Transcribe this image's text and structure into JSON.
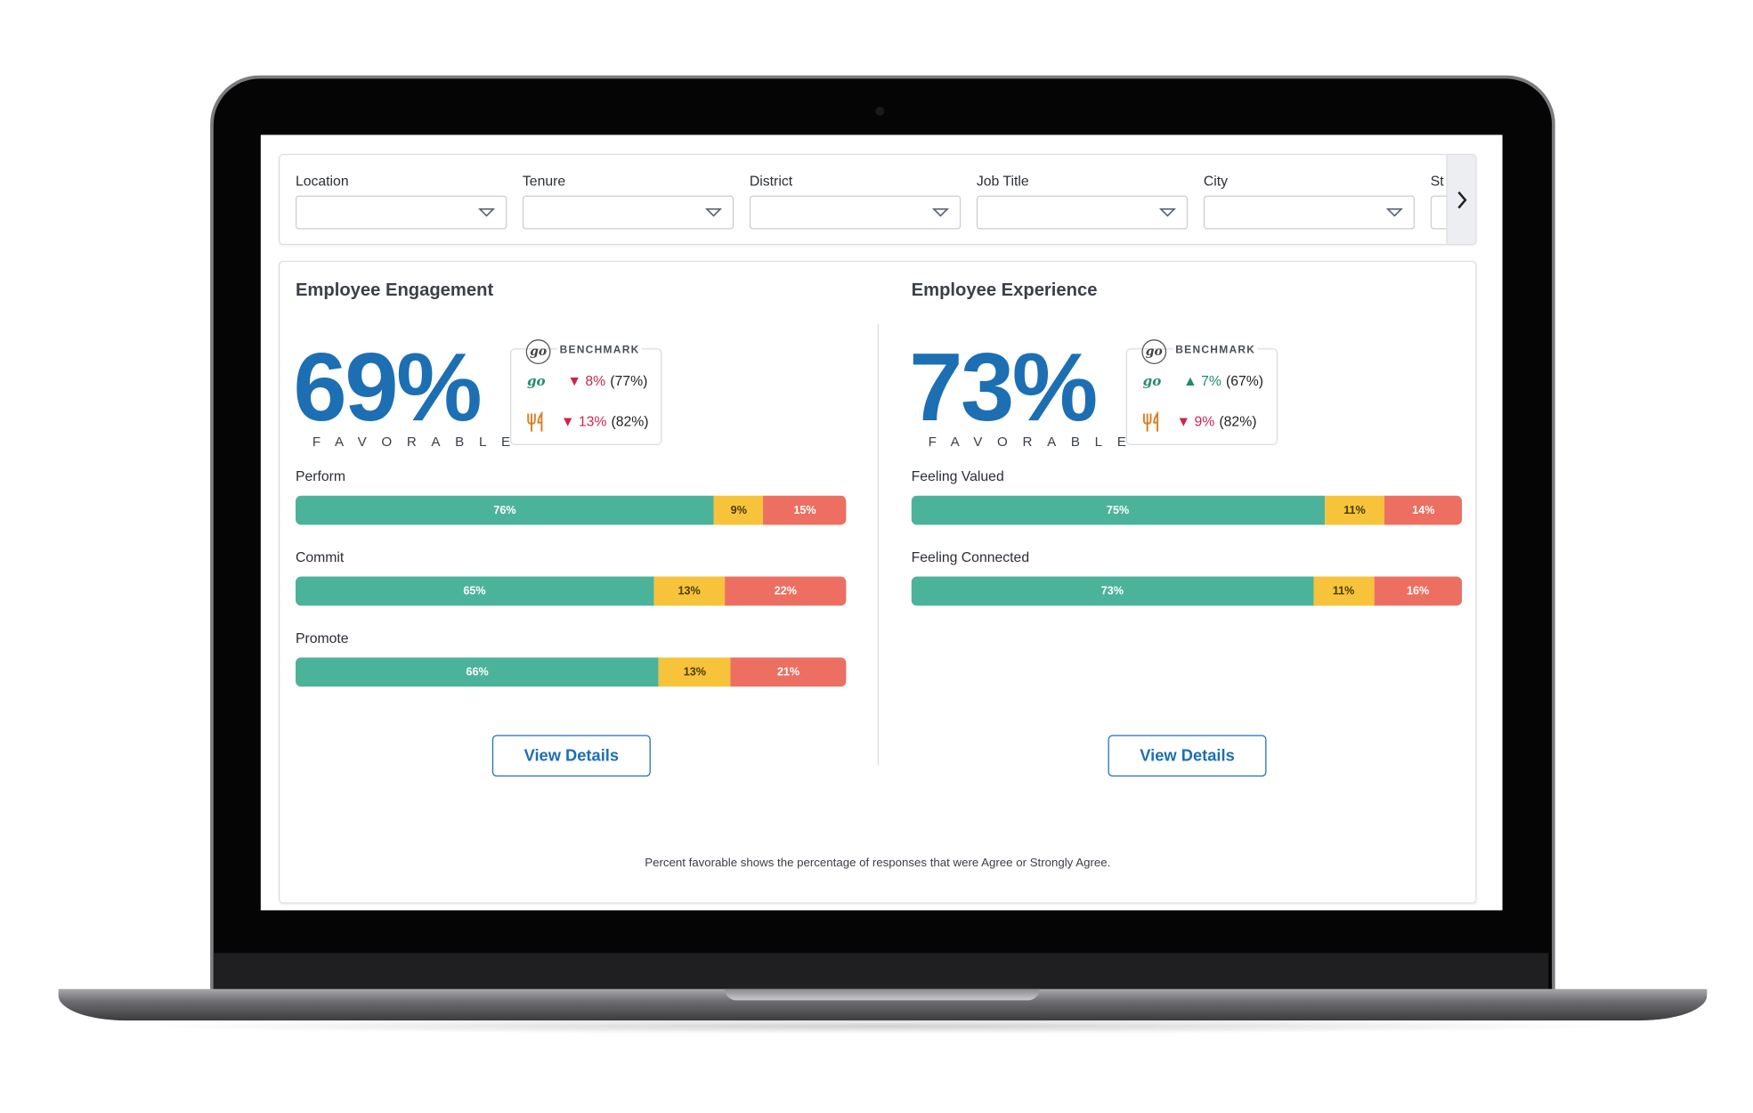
{
  "filters": [
    "Location",
    "Tenure",
    "District",
    "Job Title",
    "City",
    "St"
  ],
  "panels": [
    {
      "title": "Employee Engagement",
      "score": "69%",
      "score_caption": "FAVORABLE",
      "benchmark": {
        "badge": "go",
        "title": "BENCHMARK",
        "rows": [
          {
            "label": "go",
            "delta": "▼ 8%",
            "reference": "(77%)",
            "color": "#d0234e"
          },
          {
            "label": null,
            "delta": "▼ 13%",
            "reference": "(82%)",
            "color": "#d0234e"
          }
        ]
      },
      "bars": [
        {
          "label": "Perform",
          "values": [
            76,
            9,
            15
          ],
          "value_labels": [
            "76%",
            "9%",
            "15%"
          ]
        },
        {
          "label": "Commit",
          "values": [
            65,
            13,
            22
          ],
          "value_labels": [
            "65%",
            "13%",
            "22%"
          ]
        },
        {
          "label": "Promote",
          "values": [
            66,
            13,
            21
          ],
          "value_labels": [
            "66%",
            "13%",
            "21%"
          ]
        }
      ],
      "button": "View Details"
    },
    {
      "title": "Employee Experience",
      "score": "73%",
      "score_caption": "FAVORABLE",
      "benchmark": {
        "badge": "go",
        "title": "BENCHMARK",
        "rows": [
          {
            "label": "go",
            "delta": "▲ 7%",
            "reference": "(67%)",
            "color": "#1e8a6e"
          },
          {
            "label": null,
            "delta": "▼ 9%",
            "reference": "(82%)",
            "color": "#d0234e"
          }
        ]
      },
      "bars": [
        {
          "label": "Feeling Valued",
          "values": [
            75,
            11,
            14
          ],
          "value_labels": [
            "75%",
            "11%",
            "14%"
          ]
        },
        {
          "label": "Feeling Connected",
          "values": [
            73,
            11,
            16
          ],
          "value_labels": [
            "73%",
            "11%",
            "16%"
          ]
        }
      ],
      "button": "View Details"
    }
  ],
  "bar_colors": [
    "#4cb39b",
    "#f6c33b",
    "#ec6f62"
  ],
  "bar_text_colors": [
    "#ffffff",
    "#4a3a05",
    "#ffffff"
  ],
  "footnote": "Percent favorable shows the percentage of responses that were Agree or Strongly Agree."
}
